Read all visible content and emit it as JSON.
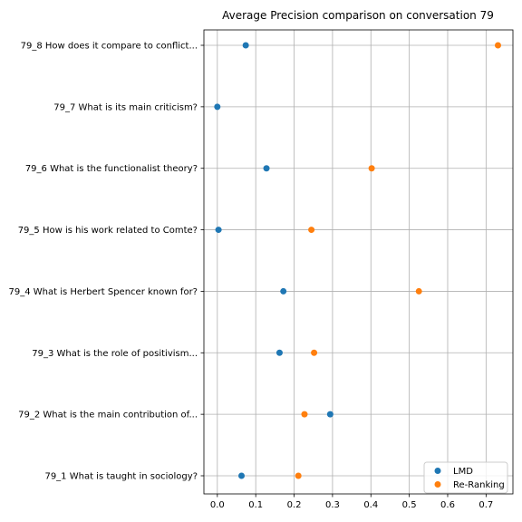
{
  "chart_data": {
    "type": "scatter",
    "title": "Average Precision comparison on conversation 79",
    "xlabel": "",
    "ylabel": "",
    "xlim": [
      -0.035,
      0.77
    ],
    "xticks": [
      0.0,
      0.1,
      0.2,
      0.3,
      0.4,
      0.5,
      0.6,
      0.7
    ],
    "xtick_labels": [
      "0.0",
      "0.1",
      "0.2",
      "0.3",
      "0.4",
      "0.5",
      "0.6",
      "0.7"
    ],
    "categories": [
      "79_1 What is taught in sociology?",
      "79_2 What is the main contribution of...",
      "79_3 What is the role of positivism...",
      "79_4 What is Herbert Spencer known for?",
      "79_5 How is his work related to Comte?",
      "79_6 What is the functionalist theory?",
      "79_7 What is its main criticism?",
      "79_8 How does it compare to conflict..."
    ],
    "series": [
      {
        "name": "LMD",
        "color": "#1f77b4",
        "values": [
          0.063,
          0.294,
          0.162,
          0.172,
          0.003,
          0.128,
          0.0,
          0.074
        ]
      },
      {
        "name": "Re-Ranking",
        "color": "#ff7f0e",
        "values": [
          0.211,
          0.227,
          0.252,
          0.525,
          0.245,
          0.402,
          null,
          0.731
        ]
      }
    ],
    "grid": true,
    "legend_position": "lower right"
  }
}
